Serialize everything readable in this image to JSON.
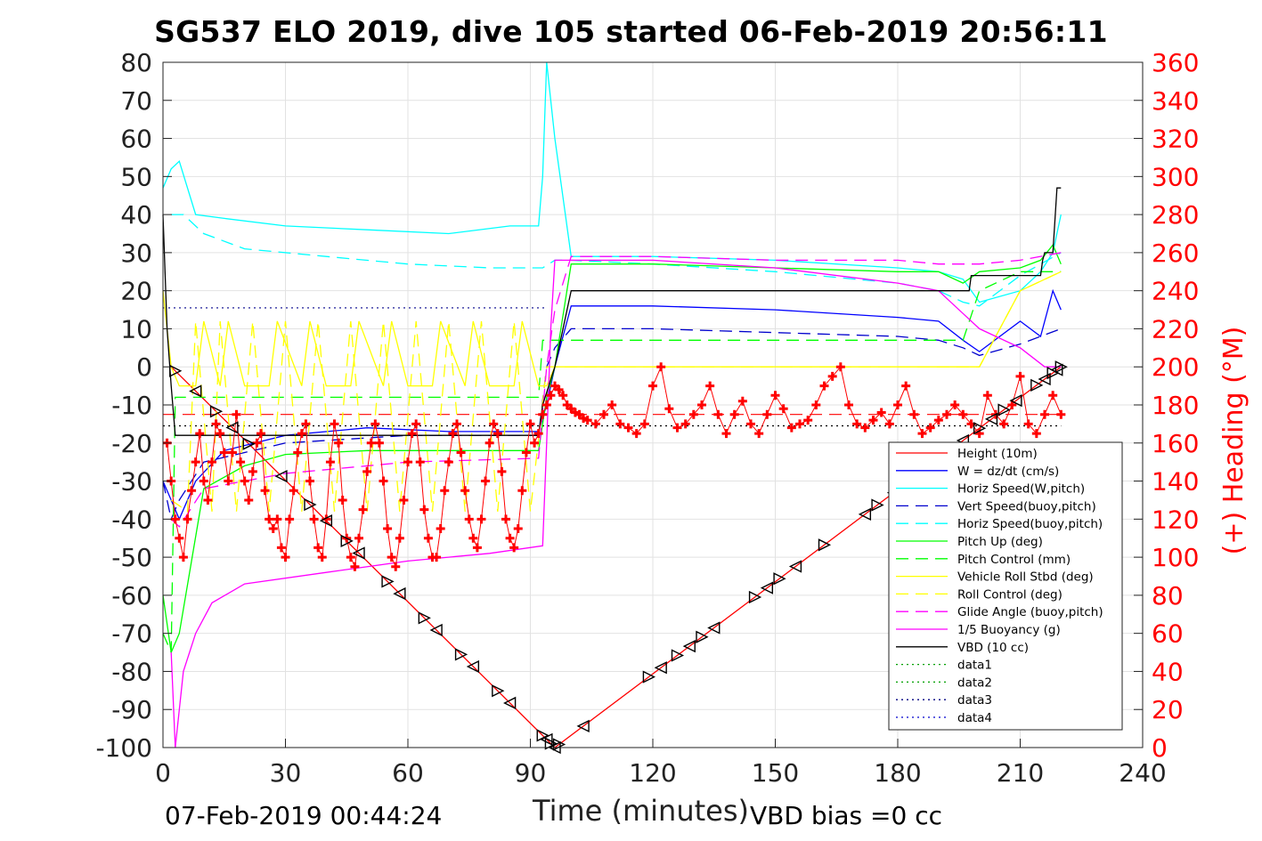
{
  "title": "SG537 ELO 2019, dive 105 started 06-Feb-2019 20:56:11",
  "footer": {
    "end_time": "07-Feb-2019 00:44:24",
    "xlabel": "Time (minutes)",
    "vbd_bias": "VBD bias =0 cc"
  },
  "colors": {
    "red": "#ff0000",
    "blue": "#0000ff",
    "cyan": "#00ffff",
    "green": "#00ff00",
    "yellow": "#ffff00",
    "magenta": "#ff00ff",
    "black": "#000000",
    "darkblue": "#00008b",
    "darkgreen": "#00a000"
  },
  "chart_data": {
    "type": "line",
    "xlabel": "Time (minutes)",
    "ylabel_right": "(+) Heading (°M)",
    "xlim": [
      0,
      240
    ],
    "ylim_left": [
      -100,
      80
    ],
    "ylim_right": [
      0,
      360
    ],
    "grid": true,
    "legend_position": "right",
    "x_ticks": [
      0,
      30,
      60,
      90,
      120,
      150,
      180,
      210,
      240
    ],
    "y_ticks_left": [
      -100,
      -90,
      -80,
      -70,
      -60,
      -50,
      -40,
      -30,
      -20,
      -10,
      0,
      10,
      20,
      30,
      40,
      50,
      60,
      70,
      80
    ],
    "y_ticks_right": [
      0,
      20,
      40,
      60,
      80,
      100,
      120,
      140,
      160,
      180,
      200,
      220,
      240,
      260,
      280,
      300,
      320,
      340,
      360
    ],
    "series": [
      {
        "name": "Height (10m)",
        "color": "#ff0000",
        "dash": "solid",
        "x": [
          2,
          96,
          220
        ],
        "y": [
          0,
          -100,
          0
        ]
      },
      {
        "name": "W = dz/dt (cm/s)",
        "color": "#0000ff",
        "dash": "solid",
        "x": [
          0,
          2,
          4,
          8,
          15,
          30,
          50,
          70,
          92,
          94,
          96,
          100,
          120,
          150,
          180,
          190,
          196,
          200,
          210,
          215,
          218,
          220
        ],
        "y": [
          -30,
          -35,
          -40,
          -30,
          -22,
          -18,
          -16,
          -17,
          -17,
          -10,
          0,
          16,
          16,
          15,
          13,
          12,
          7,
          4,
          12,
          8,
          20,
          15
        ]
      },
      {
        "name": "Horiz Speed(W,pitch)",
        "color": "#00ffff",
        "dash": "solid",
        "x": [
          0,
          2,
          4,
          8,
          15,
          30,
          50,
          70,
          85,
          92,
          93,
          94,
          95,
          96,
          100,
          120,
          150,
          180,
          190,
          196,
          200,
          210,
          215,
          218,
          220
        ],
        "y": [
          47,
          52,
          54,
          40,
          39,
          37,
          36,
          35,
          37,
          37,
          50,
          80,
          70,
          60,
          29,
          29,
          28,
          26,
          25,
          23,
          17,
          20,
          25,
          30,
          40
        ]
      },
      {
        "name": "Vert Speed(buoy,pitch)",
        "color": "#0000cd",
        "dash": "dash",
        "x": [
          0,
          2,
          4,
          10,
          30,
          60,
          92,
          94,
          96,
          100,
          120,
          150,
          180,
          190,
          196,
          200,
          210,
          220
        ],
        "y": [
          -30,
          -40,
          -35,
          -25,
          -20,
          -18,
          -18,
          0,
          5,
          10,
          10,
          9,
          8,
          7,
          5,
          3,
          6,
          10
        ]
      },
      {
        "name": "Horiz Speed(buoy,pitch)",
        "color": "#00ffff",
        "dash": "dash",
        "x": [
          2,
          5,
          10,
          20,
          40,
          60,
          80,
          93,
          96,
          100,
          120,
          150,
          180,
          190,
          196,
          200,
          210,
          220
        ],
        "y": [
          40,
          40,
          35,
          31,
          29,
          27,
          26,
          26,
          28,
          28,
          27,
          25,
          22,
          20,
          17,
          16,
          24,
          30
        ]
      },
      {
        "name": "Pitch Up (deg)",
        "color": "#00ff00",
        "dash": "solid",
        "x": [
          0,
          2,
          4,
          10,
          20,
          30,
          50,
          70,
          92,
          94,
          96,
          100,
          120,
          150,
          180,
          190,
          196,
          200,
          210,
          215,
          218,
          220
        ],
        "y": [
          -60,
          -75,
          -70,
          -32,
          -26,
          -23,
          -22,
          -22,
          -22,
          -8,
          0,
          27,
          27,
          26,
          25,
          25,
          22,
          25,
          26,
          28,
          32,
          27
        ]
      },
      {
        "name": "Pitch Control (mm)",
        "color": "#00ff00",
        "dash": "dash",
        "x": [
          0,
          2,
          3,
          10,
          92,
          93,
          96,
          100,
          120,
          150,
          180,
          190,
          196,
          200,
          210,
          220
        ],
        "y": [
          -70,
          -75,
          -8,
          -8,
          -8,
          7,
          7,
          7,
          7,
          7,
          7,
          7,
          7,
          20,
          25,
          25
        ]
      },
      {
        "name": "Vehicle Roll Stbd (deg)",
        "color": "#ffff00",
        "dash": "solid",
        "x": [
          0,
          2,
          4,
          8,
          10,
          14,
          16,
          20,
          26,
          28,
          34,
          36,
          40,
          46,
          48,
          54,
          56,
          60,
          66,
          68,
          74,
          76,
          80,
          86,
          88,
          92,
          94,
          96,
          100,
          120,
          150,
          180,
          190,
          196,
          200,
          210,
          220
        ],
        "y": [
          20,
          0,
          -5,
          -5,
          12,
          -5,
          12,
          -5,
          -5,
          12,
          -5,
          12,
          -5,
          -5,
          12,
          -5,
          12,
          -5,
          -5,
          12,
          -5,
          12,
          -5,
          -5,
          12,
          -5,
          -5,
          0,
          0,
          0,
          0,
          0,
          0,
          0,
          0,
          20,
          25
        ]
      },
      {
        "name": "Roll Control (deg)",
        "color": "#ffff00",
        "dash": "dash",
        "x": [
          2,
          6,
          8,
          12,
          14,
          18,
          22,
          26,
          30,
          34,
          38,
          42,
          46,
          50,
          54,
          58,
          62,
          66,
          70,
          74,
          78,
          82,
          86,
          90,
          94,
          96,
          100,
          120,
          150,
          180,
          200,
          210,
          220
        ],
        "y": [
          -35,
          -38,
          12,
          -38,
          12,
          -38,
          12,
          -38,
          12,
          -38,
          12,
          -38,
          12,
          -38,
          12,
          -38,
          12,
          -38,
          12,
          -38,
          12,
          -38,
          12,
          -38,
          0,
          0,
          0,
          0,
          0,
          0,
          0,
          20,
          25
        ]
      },
      {
        "name": "Glide Angle (buoy,pitch)",
        "color": "#ff00ff",
        "dash": "dash",
        "x": [
          2,
          4,
          10,
          30,
          60,
          92,
          94,
          96,
          100,
          120,
          150,
          180,
          190,
          200,
          210,
          220
        ],
        "y": [
          -40,
          -42,
          -32,
          -28,
          -25,
          -24,
          0,
          15,
          29,
          29,
          28,
          28,
          27,
          27,
          28,
          30
        ]
      },
      {
        "name": "1/5 Buoyancy (g)",
        "color": "#ff00ff",
        "dash": "solid",
        "x": [
          2,
          3,
          5,
          8,
          12,
          20,
          40,
          60,
          80,
          93,
          94,
          95,
          96,
          100,
          120,
          150,
          180,
          190,
          196,
          200,
          210,
          216,
          220
        ],
        "y": [
          -75,
          -100,
          -80,
          -70,
          -62,
          -57,
          -54,
          -51,
          -49,
          -47,
          -20,
          10,
          28,
          28,
          28,
          26,
          22,
          20,
          14,
          10,
          5,
          0,
          0
        ]
      },
      {
        "name": "VBD (10 cc)",
        "color": "#000000",
        "dash": "solid",
        "x": [
          0,
          1,
          2,
          3,
          92,
          93,
          96,
          100,
          197,
          197.5,
          198,
          215,
          215.5,
          216,
          218,
          219,
          220
        ],
        "y": [
          40,
          10,
          -5,
          -18,
          -18,
          -10,
          0,
          20,
          20,
          20,
          24,
          24,
          28,
          30,
          30,
          47,
          47
        ]
      },
      {
        "name": "data1",
        "color": "#00a000",
        "dash": "dot",
        "x": [],
        "y": []
      },
      {
        "name": "data2",
        "color": "#00a000",
        "dash": "dot",
        "x": [],
        "y": []
      },
      {
        "name": "data3",
        "color": "#000080",
        "dash": "dot",
        "x": [],
        "y": []
      },
      {
        "name": "data4",
        "color": "#0000cd",
        "dash": "dot",
        "x": [],
        "y": []
      }
    ],
    "reference_lines": [
      {
        "color": "#00008b",
        "dash": "dot",
        "y": 15.5,
        "x_range": [
          0,
          94
        ]
      },
      {
        "color": "#000000",
        "dash": "dot",
        "y": -15.5,
        "x_range": [
          0,
          220
        ]
      },
      {
        "color": "#ff0000",
        "dash": "dash",
        "y": -12.5,
        "x_range": [
          0,
          220
        ]
      }
    ],
    "heading": {
      "name": "Heading",
      "color": "#ff0000",
      "axis": "right",
      "marker": "+",
      "x": [
        1,
        2,
        3,
        4,
        5,
        6,
        7,
        8,
        9,
        10,
        11,
        12,
        13,
        14,
        15,
        16,
        17,
        18,
        19,
        20,
        21,
        22,
        23,
        24,
        25,
        26,
        27,
        28,
        29,
        30,
        31,
        32,
        33,
        34,
        35,
        36,
        37,
        38,
        39,
        40,
        41,
        42,
        43,
        44,
        45,
        46,
        47,
        48,
        49,
        50,
        51,
        52,
        53,
        54,
        55,
        56,
        57,
        58,
        59,
        60,
        61,
        62,
        63,
        64,
        65,
        66,
        67,
        68,
        69,
        70,
        71,
        72,
        73,
        74,
        75,
        76,
        77,
        78,
        79,
        80,
        81,
        82,
        83,
        84,
        85,
        86,
        87,
        88,
        89,
        90,
        91,
        92,
        93,
        94,
        95,
        96,
        97,
        98,
        99,
        100,
        101,
        102,
        103,
        104,
        106,
        108,
        110,
        112,
        114,
        116,
        118,
        120,
        122,
        124,
        126,
        128,
        130,
        132,
        134,
        136,
        138,
        140,
        142,
        144,
        146,
        148,
        150,
        152,
        154,
        156,
        158,
        160,
        162,
        164,
        166,
        168,
        170,
        172,
        174,
        176,
        178,
        180,
        182,
        184,
        186,
        188,
        190,
        192,
        194,
        196,
        198,
        200,
        202,
        204,
        206,
        208,
        210,
        212,
        214,
        216,
        218,
        220
      ],
      "y": [
        160,
        140,
        120,
        110,
        100,
        120,
        135,
        150,
        165,
        140,
        130,
        150,
        170,
        165,
        155,
        140,
        155,
        175,
        150,
        140,
        130,
        145,
        160,
        165,
        135,
        120,
        115,
        120,
        105,
        100,
        120,
        135,
        155,
        165,
        170,
        140,
        120,
        105,
        100,
        120,
        150,
        170,
        160,
        130,
        110,
        100,
        95,
        110,
        125,
        145,
        160,
        170,
        160,
        140,
        115,
        100,
        95,
        110,
        130,
        150,
        165,
        170,
        150,
        125,
        110,
        100,
        100,
        115,
        135,
        150,
        165,
        170,
        155,
        135,
        120,
        110,
        105,
        120,
        140,
        160,
        170,
        165,
        145,
        120,
        110,
        105,
        115,
        135,
        155,
        170,
        160,
        165,
        175,
        180,
        185,
        190,
        188,
        185,
        180,
        178,
        176,
        175,
        173,
        172,
        170,
        175,
        180,
        170,
        168,
        165,
        170,
        190,
        200,
        178,
        168,
        170,
        175,
        180,
        190,
        175,
        165,
        175,
        182,
        170,
        165,
        175,
        185,
        178,
        168,
        170,
        172,
        180,
        190,
        195,
        200,
        180,
        170,
        168,
        172,
        176,
        170,
        180,
        190,
        175,
        165,
        168,
        172,
        175,
        180,
        175,
        170,
        165,
        185,
        175,
        170,
        180,
        195,
        170,
        165,
        175,
        185,
        175
      ]
    },
    "markers": {
      "shape": "triangle",
      "on_series": "Height (10m)",
      "x": [
        3,
        8,
        13,
        17,
        21,
        29,
        36,
        40,
        45,
        48,
        55,
        58,
        64,
        67,
        73,
        76,
        82,
        85,
        93,
        94,
        95,
        96,
        97,
        103,
        119,
        122,
        126,
        129,
        132,
        135,
        145,
        148,
        151,
        155,
        162,
        172,
        175,
        179,
        184,
        188,
        192,
        196,
        200,
        203,
        206,
        209,
        214,
        216,
        218,
        219,
        220
      ]
    }
  },
  "legend": [
    {
      "label": "Height (10m)",
      "color": "#ff0000",
      "dash": "solid"
    },
    {
      "label": "W = dz/dt (cm/s)",
      "color": "#0000ff",
      "dash": "solid"
    },
    {
      "label": "Horiz Speed(W,pitch)",
      "color": "#00ffff",
      "dash": "solid"
    },
    {
      "label": "Vert Speed(buoy,pitch)",
      "color": "#0000cd",
      "dash": "dash"
    },
    {
      "label": "Horiz Speed(buoy,pitch)",
      "color": "#00ffff",
      "dash": "dash"
    },
    {
      "label": "Pitch Up (deg)",
      "color": "#00ff00",
      "dash": "solid"
    },
    {
      "label": "Pitch Control (mm)",
      "color": "#00ff00",
      "dash": "dash"
    },
    {
      "label": "Vehicle Roll Stbd (deg)",
      "color": "#ffff00",
      "dash": "solid"
    },
    {
      "label": "Roll Control (deg)",
      "color": "#ffff00",
      "dash": "dash"
    },
    {
      "label": "Glide Angle (buoy,pitch)",
      "color": "#ff00ff",
      "dash": "dash"
    },
    {
      "label": "1/5 Buoyancy (g)",
      "color": "#ff00ff",
      "dash": "solid"
    },
    {
      "label": "VBD (10 cc)",
      "color": "#000000",
      "dash": "solid"
    },
    {
      "label": "data1",
      "color": "#00a000",
      "dash": "dot"
    },
    {
      "label": "data2",
      "color": "#00a000",
      "dash": "dot"
    },
    {
      "label": "data3",
      "color": "#000080",
      "dash": "dot"
    },
    {
      "label": "data4",
      "color": "#0000cd",
      "dash": "dot"
    }
  ]
}
